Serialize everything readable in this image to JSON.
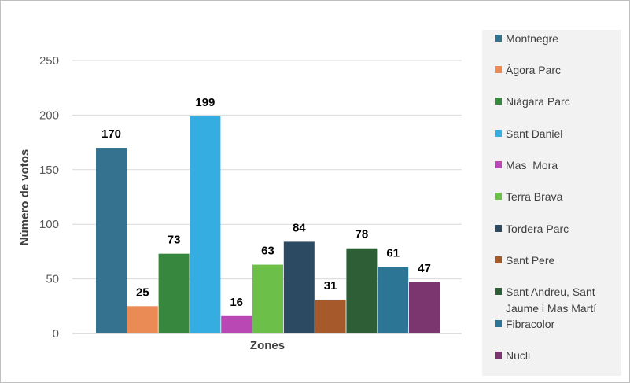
{
  "chart_data": {
    "type": "bar",
    "xlabel": "Zones",
    "ylabel": "Número de votos",
    "ylim": [
      0,
      250
    ],
    "yticks": [
      0,
      50,
      100,
      150,
      200,
      250
    ],
    "grid": true,
    "legend_position": "right",
    "series": [
      {
        "name": "Montnegre",
        "value": 170,
        "color": "#35728f"
      },
      {
        "name": "Àgora Parc",
        "value": 25,
        "color": "#ea8a55"
      },
      {
        "name": "Niàgara Parc",
        "value": 73,
        "color": "#37873f"
      },
      {
        "name": "Sant Daniel",
        "value": 199,
        "color": "#36ade0"
      },
      {
        "name": "Mas  Mora",
        "value": 16,
        "color": "#b948b5"
      },
      {
        "name": "Terra Brava",
        "value": 63,
        "color": "#6cc04a"
      },
      {
        "name": "Tordera Parc",
        "value": 84,
        "color": "#2c4b62"
      },
      {
        "name": "Sant Pere",
        "value": 31,
        "color": "#a6592a"
      },
      {
        "name": "Sant Andreu, Sant Jaume i Mas Martí",
        "value": 78,
        "color": "#2d5e36"
      },
      {
        "name": "Fibracolor",
        "value": 61,
        "color": "#2d7595"
      },
      {
        "name": "Nucli",
        "value": 47,
        "color": "#7b3670"
      }
    ]
  },
  "legend": {
    "items": [
      {
        "lines": [
          "Montnegre"
        ]
      },
      {
        "lines": [
          "Àgora Parc"
        ]
      },
      {
        "lines": [
          "Niàgara Parc"
        ]
      },
      {
        "lines": [
          "Sant Daniel"
        ]
      },
      {
        "lines": [
          "Mas  Mora"
        ]
      },
      {
        "lines": [
          "Terra Brava"
        ]
      },
      {
        "lines": [
          "Tordera Parc"
        ]
      },
      {
        "lines": [
          "Sant Pere"
        ]
      },
      {
        "lines": [
          "Sant Andreu, Sant",
          "Jaume i Mas Martí"
        ]
      },
      {
        "lines": [
          "Fibracolor"
        ]
      },
      {
        "lines": [
          "Nucli"
        ]
      }
    ]
  }
}
